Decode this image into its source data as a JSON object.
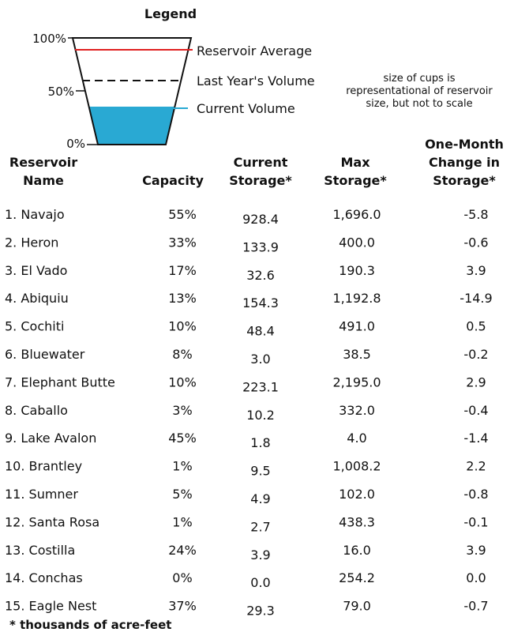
{
  "legend": {
    "title": "Legend",
    "axis_labels": [
      "100%",
      "50%",
      "0%"
    ],
    "items": [
      "Reservoir Average",
      "Last Year's Volume",
      "Current Volume"
    ],
    "note": [
      "size of cups is",
      "representational of reservoir",
      "size, but not to scale"
    ]
  },
  "table": {
    "headers": [
      [
        "Reservoir",
        "Name"
      ],
      [
        "Capacity"
      ],
      [
        "Current",
        "Storage*"
      ],
      [
        "Max",
        "Storage*"
      ],
      [
        "One-Month",
        "Change in",
        "Storage*"
      ]
    ],
    "rows": [
      [
        "1. Navajo",
        "55%",
        "928.4",
        "1,696.0",
        "-5.8"
      ],
      [
        "2. Heron",
        "33%",
        "133.9",
        "400.0",
        "-0.6"
      ],
      [
        "3. El Vado",
        "17%",
        "32.6",
        "190.3",
        "3.9"
      ],
      [
        "4. Abiquiu",
        "13%",
        "154.3",
        "1,192.8",
        "-14.9"
      ],
      [
        "5. Cochiti",
        "10%",
        "48.4",
        "491.0",
        "0.5"
      ],
      [
        "6. Bluewater",
        "8%",
        "3.0",
        "38.5",
        "-0.2"
      ],
      [
        "7. Elephant Butte",
        "10%",
        "223.1",
        "2,195.0",
        "2.9"
      ],
      [
        "8. Caballo",
        "3%",
        "10.2",
        "332.0",
        "-0.4"
      ],
      [
        "9. Lake Avalon",
        "45%",
        "1.8",
        "4.0",
        "-1.4"
      ],
      [
        "10. Brantley",
        "1%",
        "9.5",
        "1,008.2",
        "2.2"
      ],
      [
        "11. Sumner",
        "5%",
        "4.9",
        "102.0",
        "-0.8"
      ],
      [
        "12. Santa Rosa",
        "1%",
        "2.7",
        "438.3",
        "-0.1"
      ],
      [
        "13. Costilla",
        "24%",
        "3.9",
        "16.0",
        "3.9"
      ],
      [
        "14. Conchas",
        "0%",
        "0.0",
        "254.2",
        "0.0"
      ],
      [
        "15. Eagle Nest",
        "37%",
        "29.3",
        "79.0",
        "-0.7"
      ]
    ],
    "footnote": "* thousands of acre-feet"
  }
}
